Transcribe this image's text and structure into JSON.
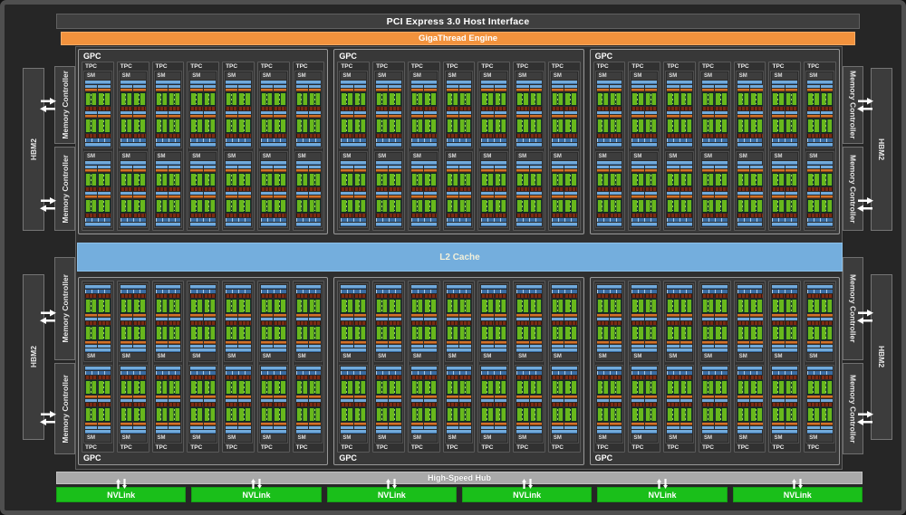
{
  "title_bars": {
    "pci": "PCI Express 3.0 Host Interface",
    "gigathread": "GigaThread Engine",
    "l2": "L2 Cache",
    "hub": "High-Speed Hub",
    "nvlink": "NVLink"
  },
  "labels": {
    "gpc": "GPC",
    "tpc": "TPC",
    "sm": "SM",
    "hbm2": "HBM2",
    "memory_controller": "Memory Controller"
  },
  "layout_counts": {
    "gpc_rows": 2,
    "gpcs_per_row": 3,
    "tpcs_per_gpc": 7,
    "sms_per_tpc": 2,
    "sm_processing_blocks": 2,
    "nvlink_count": 6,
    "memory_controllers_per_side": 4,
    "hbm2_stacks_per_side": 2
  },
  "colors": {
    "frame_gray": "#4f4f4f",
    "background": "#262626",
    "bar_dark": "#3f3f3f",
    "orange": "#f2923d",
    "l2_blue": "#74aedd",
    "hub_silver": "#a9a9a9",
    "nvlink_green": "#1abf1a",
    "gpc_fill": "#383838",
    "tpc_fill": "#313131",
    "sm_fill": "#2b2b2b",
    "sm_lightblue": "#71aadb",
    "sm_midblue": "#3a6da3",
    "sm_orange": "#d2722a",
    "sm_red": "#7a2b14",
    "core_green": "#68b81c",
    "core_teal": "#17382e"
  }
}
